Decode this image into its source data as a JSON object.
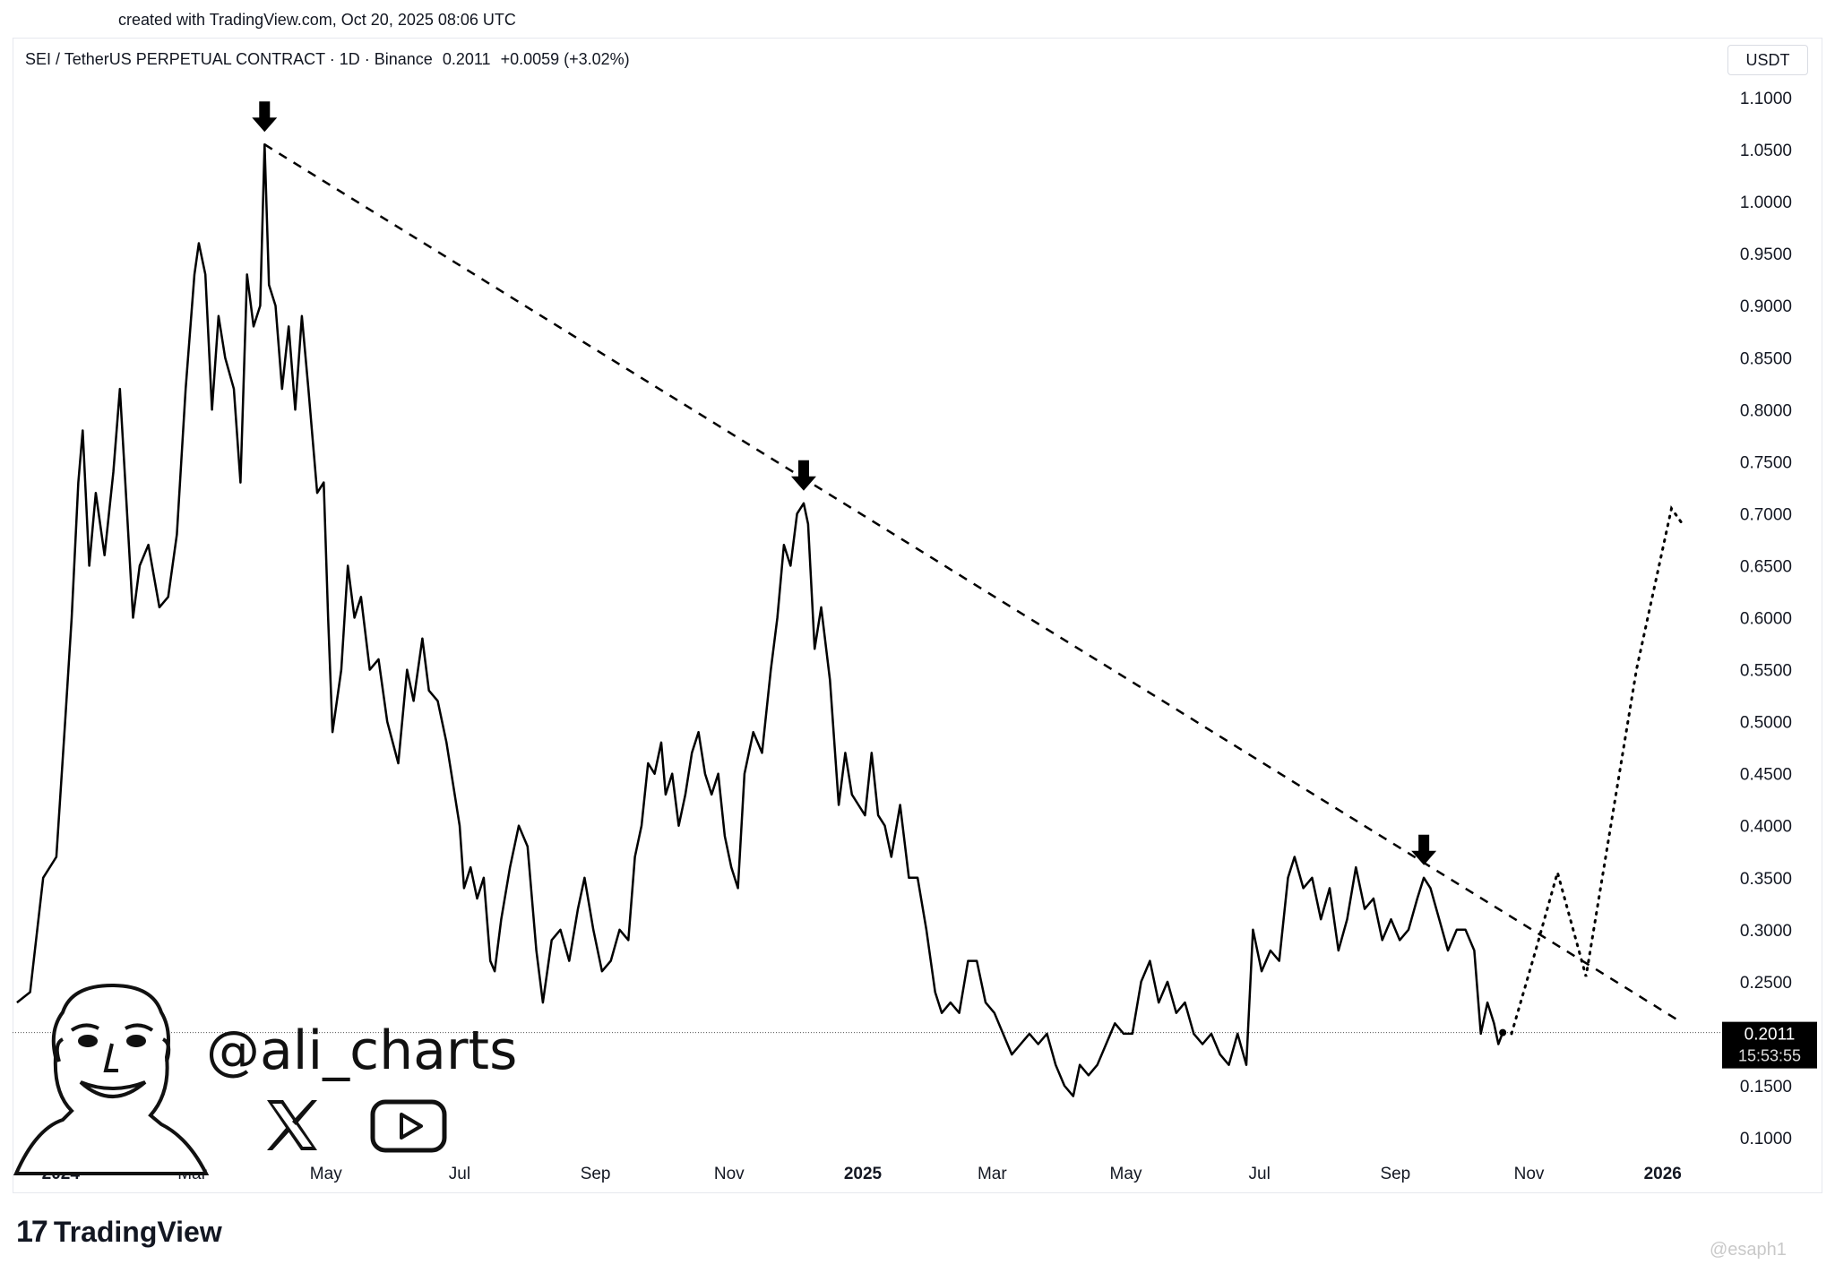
{
  "header": {
    "created_text": "created with TradingView.com, Oct 20, 2025 08:06 UTC"
  },
  "legend": {
    "symbol": "SEI / TetherUS PERPETUAL CONTRACT · 1D · Binance",
    "price": "0.2011",
    "change": "+0.0059 (+3.02%)"
  },
  "axis": {
    "unit": "USDT",
    "y_ticks": [
      "1.1000",
      "1.0500",
      "1.0000",
      "0.9500",
      "0.9000",
      "0.8500",
      "0.8000",
      "0.7500",
      "0.7000",
      "0.6500",
      "0.6000",
      "0.5500",
      "0.5000",
      "0.4500",
      "0.4000",
      "0.3500",
      "0.3000",
      "0.2500",
      "0.1500",
      "0.1000"
    ],
    "y_tick_values": [
      1.1,
      1.05,
      1.0,
      0.95,
      0.9,
      0.85,
      0.8,
      0.75,
      0.7,
      0.65,
      0.6,
      0.55,
      0.5,
      0.45,
      0.4,
      0.35,
      0.3,
      0.25,
      0.15,
      0.1
    ],
    "x_ticks": [
      {
        "label": "2024",
        "date": "2024-01-01",
        "bold": true
      },
      {
        "label": "Mar",
        "date": "2024-03-01",
        "bold": false
      },
      {
        "label": "May",
        "date": "2024-05-01",
        "bold": false
      },
      {
        "label": "Jul",
        "date": "2024-07-01",
        "bold": false
      },
      {
        "label": "Sep",
        "date": "2024-09-01",
        "bold": false
      },
      {
        "label": "Nov",
        "date": "2024-11-01",
        "bold": false
      },
      {
        "label": "2025",
        "date": "2025-01-01",
        "bold": true
      },
      {
        "label": "Mar",
        "date": "2025-03-01",
        "bold": false
      },
      {
        "label": "May",
        "date": "2025-05-01",
        "bold": false
      },
      {
        "label": "Jul",
        "date": "2025-07-01",
        "bold": false
      },
      {
        "label": "Sep",
        "date": "2025-09-01",
        "bold": false
      },
      {
        "label": "Nov",
        "date": "2025-11-01",
        "bold": false
      },
      {
        "label": "2026",
        "date": "2026-01-01",
        "bold": true
      }
    ]
  },
  "price_badge": {
    "price": "0.2011",
    "countdown": "15:53:55"
  },
  "branding": {
    "handle": "@ali_charts",
    "tv_mark": "17",
    "tv_name": "TradingView",
    "watermark": "@esaph1"
  },
  "icons": [
    "x-logo-icon",
    "youtube-icon",
    "down-arrow-icon",
    "tradingview-logo-icon",
    "avatar-portrait"
  ],
  "colors": {
    "line": "#000000",
    "background": "#ffffff",
    "badge_bg": "#000000",
    "badge_text": "#ffffff"
  },
  "chart_data": {
    "type": "line",
    "x_range": [
      "2023-12-10",
      "2026-01-24"
    ],
    "ylim": [
      0.06,
      1.105
    ],
    "series": [
      {
        "points": [
          [
            "2023-12-12",
            0.23
          ],
          [
            "2023-12-18",
            0.24
          ],
          [
            "2023-12-24",
            0.35
          ],
          [
            "2023-12-30",
            0.37
          ],
          [
            "2024-01-03",
            0.5
          ],
          [
            "2024-01-06",
            0.6
          ],
          [
            "2024-01-09",
            0.73
          ],
          [
            "2024-01-11",
            0.78
          ],
          [
            "2024-01-14",
            0.65
          ],
          [
            "2024-01-17",
            0.72
          ],
          [
            "2024-01-21",
            0.66
          ],
          [
            "2024-01-25",
            0.74
          ],
          [
            "2024-01-28",
            0.82
          ],
          [
            "2024-01-31",
            0.71
          ],
          [
            "2024-02-03",
            0.6
          ],
          [
            "2024-02-06",
            0.65
          ],
          [
            "2024-02-10",
            0.67
          ],
          [
            "2024-02-15",
            0.61
          ],
          [
            "2024-02-19",
            0.62
          ],
          [
            "2024-02-23",
            0.68
          ],
          [
            "2024-02-27",
            0.82
          ],
          [
            "2024-03-02",
            0.93
          ],
          [
            "2024-03-04",
            0.96
          ],
          [
            "2024-03-07",
            0.93
          ],
          [
            "2024-03-10",
            0.8
          ],
          [
            "2024-03-13",
            0.89
          ],
          [
            "2024-03-16",
            0.85
          ],
          [
            "2024-03-20",
            0.82
          ],
          [
            "2024-03-23",
            0.73
          ],
          [
            "2024-03-26",
            0.93
          ],
          [
            "2024-03-29",
            0.88
          ],
          [
            "2024-04-01",
            0.9
          ],
          [
            "2024-04-03",
            1.055
          ],
          [
            "2024-04-05",
            0.92
          ],
          [
            "2024-04-08",
            0.9
          ],
          [
            "2024-04-11",
            0.82
          ],
          [
            "2024-04-14",
            0.88
          ],
          [
            "2024-04-17",
            0.8
          ],
          [
            "2024-04-20",
            0.89
          ],
          [
            "2024-04-23",
            0.82
          ],
          [
            "2024-04-27",
            0.72
          ],
          [
            "2024-04-30",
            0.73
          ],
          [
            "2024-05-02",
            0.6
          ],
          [
            "2024-05-04",
            0.49
          ],
          [
            "2024-05-08",
            0.55
          ],
          [
            "2024-05-11",
            0.65
          ],
          [
            "2024-05-14",
            0.6
          ],
          [
            "2024-05-17",
            0.62
          ],
          [
            "2024-05-21",
            0.55
          ],
          [
            "2024-05-25",
            0.56
          ],
          [
            "2024-05-29",
            0.5
          ],
          [
            "2024-06-03",
            0.46
          ],
          [
            "2024-06-07",
            0.55
          ],
          [
            "2024-06-10",
            0.52
          ],
          [
            "2024-06-14",
            0.58
          ],
          [
            "2024-06-17",
            0.53
          ],
          [
            "2024-06-21",
            0.52
          ],
          [
            "2024-06-25",
            0.48
          ],
          [
            "2024-07-01",
            0.4
          ],
          [
            "2024-07-03",
            0.34
          ],
          [
            "2024-07-06",
            0.36
          ],
          [
            "2024-07-09",
            0.33
          ],
          [
            "2024-07-12",
            0.35
          ],
          [
            "2024-07-15",
            0.27
          ],
          [
            "2024-07-17",
            0.26
          ],
          [
            "2024-07-20",
            0.31
          ],
          [
            "2024-07-24",
            0.36
          ],
          [
            "2024-07-28",
            0.4
          ],
          [
            "2024-08-01",
            0.38
          ],
          [
            "2024-08-05",
            0.28
          ],
          [
            "2024-08-08",
            0.23
          ],
          [
            "2024-08-12",
            0.29
          ],
          [
            "2024-08-16",
            0.3
          ],
          [
            "2024-08-20",
            0.27
          ],
          [
            "2024-08-24",
            0.32
          ],
          [
            "2024-08-27",
            0.35
          ],
          [
            "2024-08-31",
            0.3
          ],
          [
            "2024-09-04",
            0.26
          ],
          [
            "2024-09-08",
            0.27
          ],
          [
            "2024-09-12",
            0.3
          ],
          [
            "2024-09-16",
            0.29
          ],
          [
            "2024-09-19",
            0.37
          ],
          [
            "2024-09-22",
            0.4
          ],
          [
            "2024-09-25",
            0.46
          ],
          [
            "2024-09-28",
            0.45
          ],
          [
            "2024-10-01",
            0.48
          ],
          [
            "2024-10-03",
            0.43
          ],
          [
            "2024-10-06",
            0.45
          ],
          [
            "2024-10-09",
            0.4
          ],
          [
            "2024-10-12",
            0.43
          ],
          [
            "2024-10-15",
            0.47
          ],
          [
            "2024-10-18",
            0.49
          ],
          [
            "2024-10-21",
            0.45
          ],
          [
            "2024-10-24",
            0.43
          ],
          [
            "2024-10-27",
            0.45
          ],
          [
            "2024-10-30",
            0.39
          ],
          [
            "2024-11-02",
            0.36
          ],
          [
            "2024-11-05",
            0.34
          ],
          [
            "2024-11-08",
            0.45
          ],
          [
            "2024-11-12",
            0.49
          ],
          [
            "2024-11-16",
            0.47
          ],
          [
            "2024-11-20",
            0.55
          ],
          [
            "2024-11-23",
            0.6
          ],
          [
            "2024-11-26",
            0.67
          ],
          [
            "2024-11-29",
            0.65
          ],
          [
            "2024-12-02",
            0.7
          ],
          [
            "2024-12-05",
            0.71
          ],
          [
            "2024-12-07",
            0.69
          ],
          [
            "2024-12-10",
            0.57
          ],
          [
            "2024-12-13",
            0.61
          ],
          [
            "2024-12-17",
            0.54
          ],
          [
            "2024-12-21",
            0.42
          ],
          [
            "2024-12-24",
            0.47
          ],
          [
            "2024-12-27",
            0.43
          ],
          [
            "2024-12-30",
            0.42
          ],
          [
            "2025-01-02",
            0.41
          ],
          [
            "2025-01-05",
            0.47
          ],
          [
            "2025-01-08",
            0.41
          ],
          [
            "2025-01-11",
            0.4
          ],
          [
            "2025-01-14",
            0.37
          ],
          [
            "2025-01-18",
            0.42
          ],
          [
            "2025-01-22",
            0.35
          ],
          [
            "2025-01-26",
            0.35
          ],
          [
            "2025-01-30",
            0.3
          ],
          [
            "2025-02-03",
            0.24
          ],
          [
            "2025-02-06",
            0.22
          ],
          [
            "2025-02-10",
            0.23
          ],
          [
            "2025-02-14",
            0.22
          ],
          [
            "2025-02-18",
            0.27
          ],
          [
            "2025-02-22",
            0.27
          ],
          [
            "2025-02-26",
            0.23
          ],
          [
            "2025-03-02",
            0.22
          ],
          [
            "2025-03-06",
            0.2
          ],
          [
            "2025-03-10",
            0.18
          ],
          [
            "2025-03-14",
            0.19
          ],
          [
            "2025-03-18",
            0.2
          ],
          [
            "2025-03-22",
            0.19
          ],
          [
            "2025-03-26",
            0.2
          ],
          [
            "2025-03-30",
            0.17
          ],
          [
            "2025-04-03",
            0.15
          ],
          [
            "2025-04-07",
            0.14
          ],
          [
            "2025-04-10",
            0.17
          ],
          [
            "2025-04-14",
            0.16
          ],
          [
            "2025-04-18",
            0.17
          ],
          [
            "2025-04-22",
            0.19
          ],
          [
            "2025-04-26",
            0.21
          ],
          [
            "2025-04-30",
            0.2
          ],
          [
            "2025-05-04",
            0.2
          ],
          [
            "2025-05-08",
            0.25
          ],
          [
            "2025-05-12",
            0.27
          ],
          [
            "2025-05-16",
            0.23
          ],
          [
            "2025-05-20",
            0.25
          ],
          [
            "2025-05-24",
            0.22
          ],
          [
            "2025-05-28",
            0.23
          ],
          [
            "2025-06-01",
            0.2
          ],
          [
            "2025-06-05",
            0.19
          ],
          [
            "2025-06-09",
            0.2
          ],
          [
            "2025-06-13",
            0.18
          ],
          [
            "2025-06-17",
            0.17
          ],
          [
            "2025-06-21",
            0.2
          ],
          [
            "2025-06-25",
            0.17
          ],
          [
            "2025-06-28",
            0.3
          ],
          [
            "2025-07-02",
            0.26
          ],
          [
            "2025-07-06",
            0.28
          ],
          [
            "2025-07-10",
            0.27
          ],
          [
            "2025-07-14",
            0.35
          ],
          [
            "2025-07-17",
            0.37
          ],
          [
            "2025-07-21",
            0.34
          ],
          [
            "2025-07-25",
            0.35
          ],
          [
            "2025-07-29",
            0.31
          ],
          [
            "2025-08-02",
            0.34
          ],
          [
            "2025-08-06",
            0.28
          ],
          [
            "2025-08-10",
            0.31
          ],
          [
            "2025-08-14",
            0.36
          ],
          [
            "2025-08-18",
            0.32
          ],
          [
            "2025-08-22",
            0.33
          ],
          [
            "2025-08-26",
            0.29
          ],
          [
            "2025-08-30",
            0.31
          ],
          [
            "2025-09-03",
            0.29
          ],
          [
            "2025-09-07",
            0.3
          ],
          [
            "2025-09-11",
            0.33
          ],
          [
            "2025-09-14",
            0.35
          ],
          [
            "2025-09-17",
            0.34
          ],
          [
            "2025-09-21",
            0.31
          ],
          [
            "2025-09-25",
            0.28
          ],
          [
            "2025-09-29",
            0.3
          ],
          [
            "2025-10-03",
            0.3
          ],
          [
            "2025-10-07",
            0.28
          ],
          [
            "2025-10-10",
            0.2
          ],
          [
            "2025-10-13",
            0.23
          ],
          [
            "2025-10-16",
            0.21
          ],
          [
            "2025-10-18",
            0.19
          ],
          [
            "2025-10-20",
            0.2011
          ]
        ]
      }
    ],
    "trendline": {
      "style": "dashed",
      "points": [
        [
          "2024-04-03",
          1.055
        ],
        [
          "2026-01-08",
          0.213
        ]
      ]
    },
    "projection": {
      "style": "dotted",
      "points": [
        [
          "2025-10-24",
          0.2
        ],
        [
          "2025-11-04",
          0.28
        ],
        [
          "2025-11-14",
          0.355
        ],
        [
          "2025-11-27",
          0.255
        ],
        [
          "2025-12-20",
          0.55
        ],
        [
          "2026-01-05",
          0.705
        ],
        [
          "2026-01-10",
          0.69
        ]
      ]
    },
    "markers": [
      {
        "type": "down-arrow",
        "date": "2024-04-03",
        "value": 1.055
      },
      {
        "type": "down-arrow",
        "date": "2024-12-05",
        "value": 0.71
      },
      {
        "type": "down-arrow",
        "date": "2025-09-14",
        "value": 0.35
      }
    ],
    "last_price_line": 0.2011
  }
}
